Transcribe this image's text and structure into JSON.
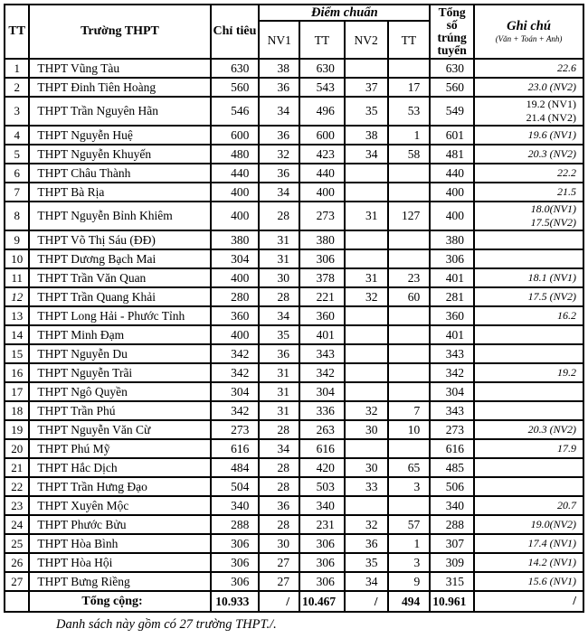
{
  "colors": {
    "text": "#000000",
    "border": "#000000",
    "background": "#ffffff"
  },
  "table": {
    "header": {
      "tt": "TT",
      "school": "Trường THPT",
      "quota": "Chỉ tiêu",
      "diem_chuan": "Điểm chuẩn",
      "sub_cols": [
        "NV1",
        "TT",
        "NV2",
        "TT"
      ],
      "total_admitted": "Tổng số trúng tuyển",
      "note_title": "Ghi chú",
      "note_sub": "(Văn + Toán + Anh)"
    },
    "rows": [
      {
        "tt": "1",
        "name": "THPT Vũng Tàu",
        "chi_tieu": "630",
        "nv1": "38",
        "tt1": "630",
        "nv2": "",
        "tt2": "",
        "tong": "630",
        "note": [
          "22.6"
        ]
      },
      {
        "tt": "2",
        "name": "THPT Đinh Tiên Hoàng",
        "chi_tieu": "560",
        "nv1": "36",
        "tt1": "543",
        "nv2": "37",
        "tt2": "17",
        "tong": "560",
        "note": [
          "23.0 (NV2)"
        ]
      },
      {
        "tt": "3",
        "name": "THPT Trần Nguyên Hãn",
        "chi_tieu": "546",
        "nv1": "34",
        "tt1": "496",
        "nv2": "35",
        "tt2": "53",
        "tong": "549",
        "note": [
          "19.2 (NV1)",
          "21.4 (NV2)"
        ],
        "note_upright": true
      },
      {
        "tt": "4",
        "name": "THPT Nguyễn Huệ",
        "chi_tieu": "600",
        "nv1": "36",
        "tt1": "600",
        "nv2": "38",
        "tt2": "1",
        "tong": "601",
        "note": [
          "19.6 (NV1)"
        ]
      },
      {
        "tt": "5",
        "name": "THPT Nguyễn Khuyến",
        "chi_tieu": "480",
        "nv1": "32",
        "tt1": "423",
        "nv2": "34",
        "tt2": "58",
        "tong": "481",
        "note": [
          "20.3 (NV2)"
        ]
      },
      {
        "tt": "6",
        "name": "THPT Châu Thành",
        "chi_tieu": "440",
        "nv1": "36",
        "tt1": "440",
        "nv2": "",
        "tt2": "",
        "tong": "440",
        "note": [
          "22.2"
        ]
      },
      {
        "tt": "7",
        "name": "THPT Bà Rịa",
        "chi_tieu": "400",
        "nv1": "34",
        "tt1": "400",
        "nv2": "",
        "tt2": "",
        "tong": "400",
        "note": [
          "21.5"
        ]
      },
      {
        "tt": "8",
        "name": "THPT Nguyễn Bỉnh Khiêm",
        "chi_tieu": "400",
        "nv1": "28",
        "tt1": "273",
        "nv2": "31",
        "tt2": "127",
        "tong": "400",
        "note": [
          "18.0(NV1)",
          "17.5(NV2)"
        ]
      },
      {
        "tt": "9",
        "name": "THPT Võ Thị Sáu (ĐĐ)",
        "chi_tieu": "380",
        "nv1": "31",
        "tt1": "380",
        "nv2": "",
        "tt2": "",
        "tong": "380",
        "note": []
      },
      {
        "tt": "10",
        "name": "THPT Dương Bạch Mai",
        "chi_tieu": "304",
        "nv1": "31",
        "tt1": "306",
        "nv2": "",
        "tt2": "",
        "tong": "306",
        "note": []
      },
      {
        "tt": "11",
        "name": "THPT Trần Văn Quan",
        "chi_tieu": "400",
        "nv1": "30",
        "tt1": "378",
        "nv2": "31",
        "tt2": "23",
        "tong": "401",
        "note": [
          "18.1 (NV1)"
        ]
      },
      {
        "tt": "12",
        "name": "THPT Trần Quang Khải",
        "chi_tieu": "280",
        "nv1": "28",
        "tt1": "221",
        "nv2": "32",
        "tt2": "60",
        "tong": "281",
        "note": [
          "17.5 (NV2)"
        ],
        "tt_italic": true
      },
      {
        "tt": "13",
        "name": "THPT Long Hải - Phước Tỉnh",
        "chi_tieu": "360",
        "nv1": "34",
        "tt1": "360",
        "nv2": "",
        "tt2": "",
        "tong": "360",
        "note": [
          "16.2"
        ]
      },
      {
        "tt": "14",
        "name": "THPT Minh Đạm",
        "chi_tieu": "400",
        "nv1": "35",
        "tt1": "401",
        "nv2": "",
        "tt2": "",
        "tong": "401",
        "note": []
      },
      {
        "tt": "15",
        "name": "THPT Nguyễn Du",
        "chi_tieu": "342",
        "nv1": "36",
        "tt1": "343",
        "nv2": "",
        "tt2": "",
        "tong": "343",
        "note": []
      },
      {
        "tt": "16",
        "name": "THPT Nguyễn Trãi",
        "chi_tieu": "342",
        "nv1": "31",
        "tt1": "342",
        "nv2": "",
        "tt2": "",
        "tong": "342",
        "note": [
          "19.2"
        ]
      },
      {
        "tt": "17",
        "name": "THPT Ngô Quyền",
        "chi_tieu": "304",
        "nv1": "31",
        "tt1": "304",
        "nv2": "",
        "tt2": "",
        "tong": "304",
        "note": []
      },
      {
        "tt": "18",
        "name": "THPT Trần Phú",
        "chi_tieu": "342",
        "nv1": "31",
        "tt1": "336",
        "nv2": "32",
        "tt2": "7",
        "tong": "343",
        "note": []
      },
      {
        "tt": "19",
        "name": "THPT Nguyễn Văn Cừ",
        "chi_tieu": "273",
        "nv1": "28",
        "tt1": "263",
        "nv2": "30",
        "tt2": "10",
        "tong": "273",
        "note": [
          "20.3 (NV2)"
        ]
      },
      {
        "tt": "20",
        "name": "THPT Phú Mỹ",
        "chi_tieu": "616",
        "nv1": "34",
        "tt1": "616",
        "nv2": "",
        "tt2": "",
        "tong": "616",
        "note": [
          "17.9"
        ]
      },
      {
        "tt": "21",
        "name": "THPT Hắc Dịch",
        "chi_tieu": "484",
        "nv1": "28",
        "tt1": "420",
        "nv2": "30",
        "tt2": "65",
        "tong": "485",
        "note": []
      },
      {
        "tt": "22",
        "name": "THPT Trần Hưng Đạo",
        "chi_tieu": "504",
        "nv1": "28",
        "tt1": "503",
        "nv2": "33",
        "tt2": "3",
        "tong": "506",
        "note": []
      },
      {
        "tt": "23",
        "name": "THPT Xuyên Mộc",
        "chi_tieu": "340",
        "nv1": "36",
        "tt1": "340",
        "nv2": "",
        "tt2": "",
        "tong": "340",
        "note": [
          "20.7"
        ]
      },
      {
        "tt": "24",
        "name": "THPT Phước Bửu",
        "chi_tieu": "288",
        "nv1": "28",
        "tt1": "231",
        "nv2": "32",
        "tt2": "57",
        "tong": "288",
        "note": [
          "19.0(NV2)"
        ]
      },
      {
        "tt": "25",
        "name": "THPT Hòa Bình",
        "chi_tieu": "306",
        "nv1": "30",
        "tt1": "306",
        "nv2": "36",
        "tt2": "1",
        "tong": "307",
        "note": [
          "17.4 (NV1)"
        ]
      },
      {
        "tt": "26",
        "name": "THPT Hòa Hội",
        "chi_tieu": "306",
        "nv1": "27",
        "tt1": "306",
        "nv2": "35",
        "tt2": "3",
        "tong": "309",
        "note": [
          "14.2 (NV1)"
        ]
      },
      {
        "tt": "27",
        "name": "THPT Bưng Riềng",
        "chi_tieu": "306",
        "nv1": "27",
        "tt1": "306",
        "nv2": "34",
        "tt2": "9",
        "tong": "315",
        "note": [
          "15.6 (NV1)"
        ]
      }
    ],
    "total": {
      "label": "Tổng cộng:",
      "chi_tieu": "10.933",
      "nv1": "/",
      "tt1": "10.467",
      "nv2": "/",
      "tt2": "494",
      "tong": "10.961",
      "note": "/"
    },
    "footer_note": "Danh sách này gồm có 27 trường THPT./."
  }
}
